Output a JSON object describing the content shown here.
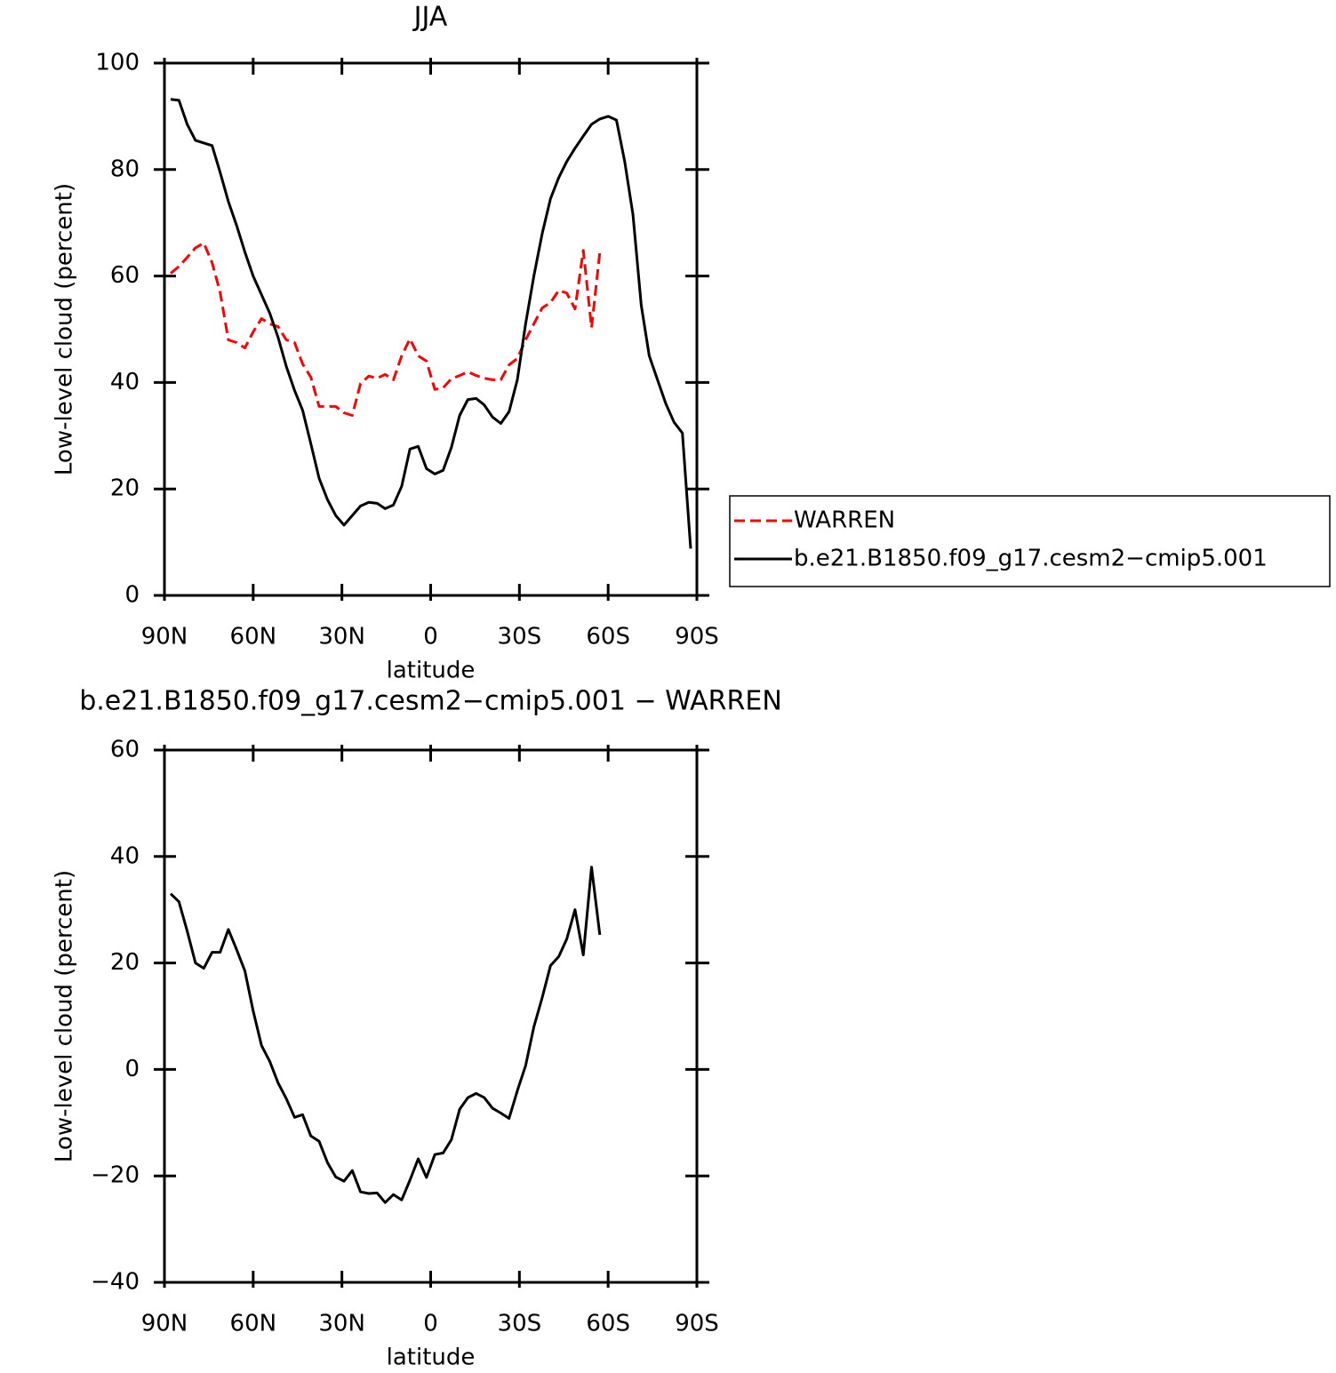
{
  "chart_data": [
    {
      "type": "line",
      "title": "JJA",
      "x_label": "latitude",
      "y_label": "Low-level cloud (percent)",
      "xlim": [
        90,
        -90
      ],
      "ylim": [
        0,
        100
      ],
      "xticks": [
        {
          "value": 90,
          "label": "90N"
        },
        {
          "value": 60,
          "label": "60N"
        },
        {
          "value": 30,
          "label": "30N"
        },
        0,
        {
          "value": -30,
          "label": "30S"
        },
        {
          "value": -60,
          "label": "60S"
        },
        {
          "value": -90,
          "label": "90S"
        }
      ],
      "yticks": [
        0,
        20,
        40,
        60,
        80,
        100
      ],
      "legend": "right",
      "x": [
        87.9,
        85.1,
        82.3,
        79.5,
        76.7,
        73.9,
        71.2,
        68.4,
        65.6,
        62.8,
        60.0,
        57.2,
        54.4,
        51.6,
        48.8,
        46.0,
        43.3,
        40.5,
        37.7,
        34.9,
        32.1,
        29.3,
        26.5,
        23.7,
        20.9,
        18.1,
        15.4,
        12.6,
        9.8,
        7.0,
        4.2,
        1.4,
        -1.4,
        -4.2,
        -7.0,
        -9.8,
        -12.6,
        -15.4,
        -18.1,
        -20.9,
        -23.7,
        -26.5,
        -29.3,
        -32.1,
        -34.9,
        -37.7,
        -40.5,
        -43.3,
        -46.0,
        -48.8,
        -51.6,
        -54.4,
        -57.2,
        -60.0,
        -62.8,
        -65.6,
        -68.4,
        -71.2,
        -73.9,
        -76.7,
        -79.5,
        -82.3,
        -85.1,
        -87.9
      ],
      "series": [
        {
          "name": "WARREN",
          "color": "#ff0000",
          "dash": true,
          "values": [
            60.5,
            61.8,
            63.5,
            65.3,
            66.2,
            62.5,
            57,
            48,
            47.5,
            46.5,
            49.5,
            52,
            51,
            50.5,
            48,
            47.5,
            43.5,
            41,
            35.5,
            35.5,
            35.5,
            34.3,
            33.8,
            39.8,
            41.2,
            40.8,
            41.5,
            40.5,
            45,
            48.2,
            45,
            44,
            38.7,
            39,
            40.7,
            41.3,
            42,
            41.3,
            40.8,
            40.5,
            40.5,
            43.3,
            44.5,
            48,
            51,
            54,
            55,
            57.3,
            56.8,
            53.8,
            64.8,
            50.3,
            64.5,
            null,
            null,
            null,
            null,
            null,
            null,
            null,
            null,
            null,
            null,
            null
          ]
        },
        {
          "name": "b.e21.B1850.f09_g17.cesm2−cmip5.001",
          "color": "#000000",
          "dash": false,
          "values": [
            93.2,
            93,
            88.5,
            85.5,
            85,
            84.5,
            79.5,
            74,
            69.5,
            64.5,
            60,
            56.5,
            53,
            48.5,
            43,
            38.5,
            34.8,
            28.5,
            22,
            18,
            15,
            13.2,
            15,
            16.8,
            17.5,
            17.3,
            16.3,
            17,
            20.5,
            27.5,
            28,
            23.8,
            22.8,
            23.5,
            27.8,
            33.8,
            36.8,
            37,
            35.8,
            33.5,
            32.3,
            34.5,
            40.5,
            51,
            60,
            68,
            74.5,
            78.5,
            81.5,
            84,
            86.3,
            88.5,
            89.5,
            90,
            89.3,
            81.5,
            71.5,
            54.5,
            45,
            40.5,
            36,
            32.5,
            30.5,
            8.8
          ]
        }
      ]
    },
    {
      "type": "line",
      "title": "b.e21.B1850.f09_g17.cesm2−cmip5.001  −  WARREN",
      "x_label": "latitude",
      "y_label": "Low-level cloud (percent)",
      "xlim": [
        90,
        -90
      ],
      "ylim": [
        -40,
        60
      ],
      "xticks": [
        {
          "value": 90,
          "label": "90N"
        },
        {
          "value": 60,
          "label": "60N"
        },
        {
          "value": 30,
          "label": "30N"
        },
        0,
        {
          "value": -30,
          "label": "30S"
        },
        {
          "value": -60,
          "label": "60S"
        },
        {
          "value": -90,
          "label": "90S"
        }
      ],
      "yticks": [
        {
          "value": -40,
          "label": "−40"
        },
        {
          "value": -20,
          "label": "−20"
        },
        0,
        20,
        40,
        60
      ],
      "x": [
        87.9,
        85.1,
        82.3,
        79.5,
        76.7,
        73.9,
        71.2,
        68.4,
        65.6,
        62.8,
        60.0,
        57.2,
        54.4,
        51.6,
        48.8,
        46.0,
        43.3,
        40.5,
        37.7,
        34.9,
        32.1,
        29.3,
        26.5,
        23.7,
        20.9,
        18.1,
        15.4,
        12.6,
        9.8,
        7.0,
        4.2,
        1.4,
        -1.4,
        -4.2,
        -7.0,
        -9.8,
        -12.6,
        -15.4,
        -18.1,
        -20.9,
        -23.7,
        -26.5,
        -29.3,
        -32.1,
        -34.9,
        -37.7,
        -40.5,
        -43.3,
        -46.0,
        -48.8,
        -51.6,
        -54.4,
        -57.2
      ],
      "series": [
        {
          "color": "#000000",
          "dash": false,
          "values": [
            33,
            31.5,
            26,
            20,
            19,
            22,
            22,
            26.3,
            22.5,
            18.5,
            11,
            4.5,
            1.5,
            -2.5,
            -5.5,
            -9,
            -8.5,
            -12.5,
            -13.5,
            -17.5,
            -20.2,
            -21,
            -19,
            -23,
            -23.3,
            -23.2,
            -25,
            -23.5,
            -24.5,
            -20.8,
            -16.8,
            -20.3,
            -16,
            -15.7,
            -13.2,
            -7.5,
            -5.3,
            -4.5,
            -5.3,
            -7.3,
            -8.2,
            -9.2,
            -4,
            0.7,
            8,
            13.5,
            19.5,
            21.2,
            24.5,
            30,
            21.5,
            38,
            25.3
          ]
        }
      ]
    }
  ]
}
